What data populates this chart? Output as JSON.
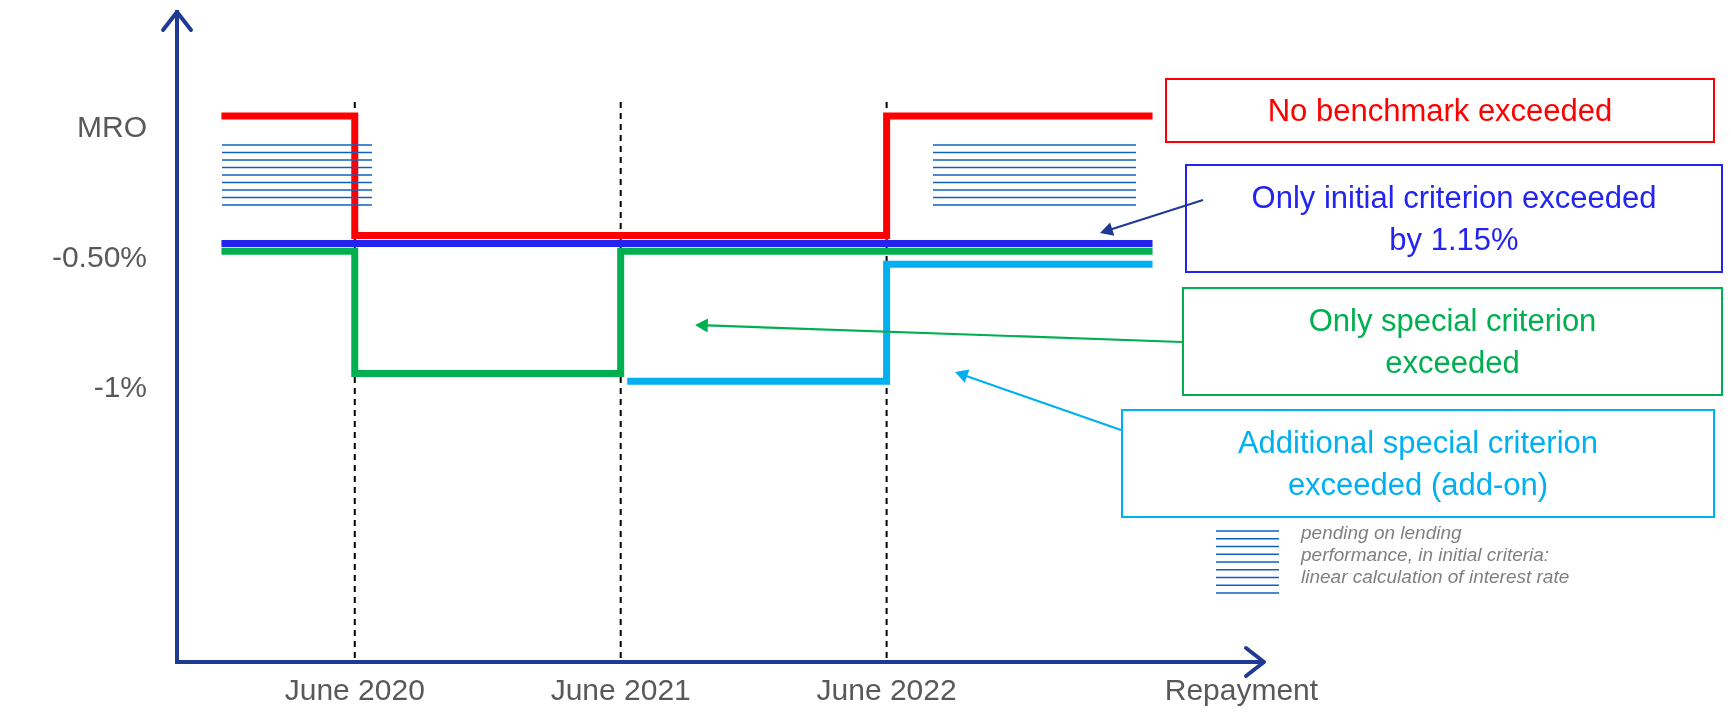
{
  "chart_data": {
    "type": "step",
    "legend": "right",
    "xlim": [
      "2019-10",
      "2023-11"
    ],
    "xticks": [
      {
        "value": "2020-06",
        "label": "June 2020"
      },
      {
        "value": "2021-06",
        "label": "June 2021"
      },
      {
        "value": "2022-06",
        "label": "June 2022"
      },
      {
        "value": "2023-10",
        "label": "Repayment"
      }
    ],
    "ylim": [
      -2.05,
      0.45
    ],
    "yticks": [
      {
        "value": 0,
        "label": "MRO"
      },
      {
        "value": -0.5,
        "label": "-0.50%"
      },
      {
        "value": -1,
        "label": "-1%"
      }
    ],
    "series": [
      {
        "name": "No benchmark exceeded",
        "color": "#ff0000",
        "x": [
          "2019-12",
          "2020-06",
          "2022-06",
          "2023-06"
        ],
        "values": [
          0.05,
          -0.41,
          0.05,
          0.05
        ]
      },
      {
        "name": "Only initial criterion exceeded by 1.15%",
        "color": "#2424f0",
        "x": [
          "2019-12",
          "2023-06"
        ],
        "values": [
          -0.44,
          -0.44
        ]
      },
      {
        "name": "Only special criterion exceeded",
        "color": "#00b050",
        "x": [
          "2019-12",
          "2020-06",
          "2021-06",
          "2023-06"
        ],
        "values": [
          -0.47,
          -0.94,
          -0.47,
          -0.47
        ]
      },
      {
        "name": "Additional special criterion exceeded (add-on)",
        "color": "#00b0f0",
        "x": [
          "2021-06-10",
          "2022-06",
          "2023-06"
        ],
        "values": [
          -0.97,
          -0.52,
          -0.52
        ]
      }
    ],
    "ref_lines": [
      {
        "axis": "x",
        "value": "2020-06",
        "color": "#000000",
        "line_style": "dashed"
      },
      {
        "axis": "x",
        "value": "2021-06",
        "color": "#000000",
        "line_style": "dashed"
      },
      {
        "axis": "x",
        "value": "2022-06",
        "color": "#000000",
        "line_style": "dashed"
      }
    ],
    "annotations": [
      "pending on lending performance, in initial criteria: linear calculation of interest rate"
    ]
  }
}
